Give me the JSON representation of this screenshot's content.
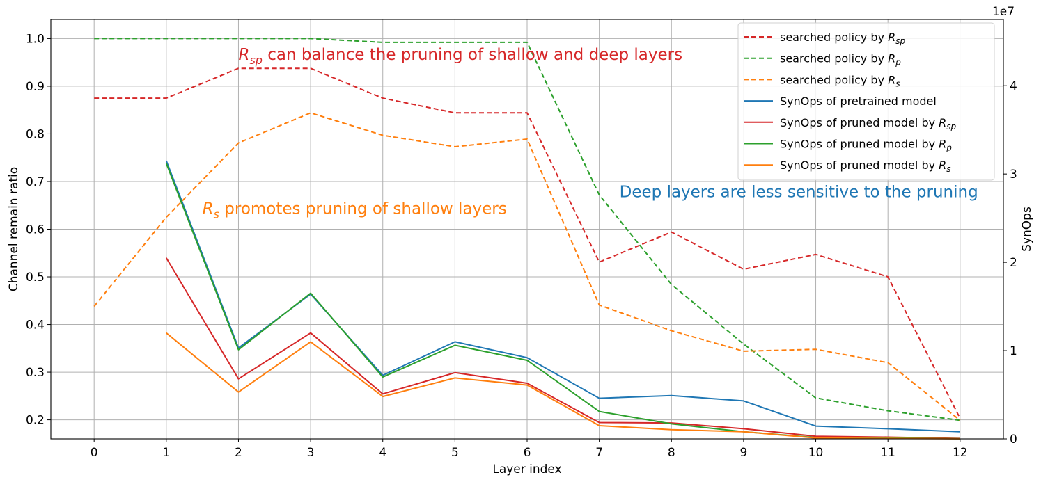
{
  "chart_data": {
    "type": "line",
    "xlabel": "Layer index",
    "ylabel_left": "Channel remain ratio",
    "ylabel_right": "SynOps",
    "right_axis_exponent": "1e7",
    "x": [
      0,
      1,
      2,
      3,
      4,
      5,
      6,
      7,
      8,
      9,
      10,
      11,
      12
    ],
    "xlim": [
      -0.6,
      12.6
    ],
    "ylim_left": [
      0.16,
      1.04
    ],
    "ylim_right": [
      0,
      47500000.0
    ],
    "left_ticks": [
      "0.2",
      "0.3",
      "0.4",
      "0.5",
      "0.6",
      "0.7",
      "0.8",
      "0.9",
      "1.0"
    ],
    "right_ticks": [
      "0",
      "1",
      "2",
      "3",
      "4"
    ],
    "grid": true,
    "legend_position": "top-right",
    "series": [
      {
        "name": "searched policy by R_sp",
        "axis": "left",
        "style": "dashed",
        "color": "#d62728",
        "x": [
          0,
          1,
          2,
          3,
          4,
          5,
          6,
          7,
          8,
          9,
          10,
          11,
          12
        ],
        "values": [
          0.875,
          0.875,
          0.9375,
          0.9375,
          0.875,
          0.844,
          0.844,
          0.531,
          0.594,
          0.516,
          0.547,
          0.5,
          0.203
        ]
      },
      {
        "name": "searched policy by R_p",
        "axis": "left",
        "style": "dashed",
        "color": "#2ca02c",
        "x": [
          0,
          1,
          2,
          3,
          4,
          5,
          6,
          7,
          8,
          9,
          10,
          11,
          12
        ],
        "values": [
          1.0,
          1.0,
          1.0,
          1.0,
          0.992,
          0.992,
          0.992,
          0.672,
          0.484,
          0.359,
          0.246,
          0.219,
          0.199
        ]
      },
      {
        "name": "searched policy by R_s",
        "axis": "left",
        "style": "dashed",
        "color": "#ff7f0e",
        "x": [
          0,
          1,
          2,
          3,
          4,
          5,
          6,
          7,
          8,
          9,
          10,
          11,
          12
        ],
        "values": [
          0.438,
          0.625,
          0.781,
          0.844,
          0.797,
          0.773,
          0.789,
          0.441,
          0.387,
          0.344,
          0.348,
          0.32,
          0.199
        ]
      },
      {
        "name": "SynOps of pretrained model",
        "axis": "right",
        "style": "solid",
        "color": "#1f77b4",
        "x": [
          1,
          2,
          3,
          4,
          5,
          6,
          7,
          8,
          9,
          10,
          11,
          12
        ],
        "values": [
          31500000.0,
          10300000.0,
          16400000.0,
          7200000.0,
          11000000.0,
          9200000.0,
          4600000.0,
          4900000.0,
          4300000.0,
          1450000.0,
          1150000.0,
          800000.0
        ]
      },
      {
        "name": "SynOps of pruned model by R_sp",
        "axis": "right",
        "style": "solid",
        "color": "#d62728",
        "x": [
          1,
          2,
          3,
          4,
          5,
          6,
          7,
          8,
          9,
          10,
          11,
          12
        ],
        "values": [
          20500000.0,
          6800000.0,
          12000000.0,
          5100000.0,
          7500000.0,
          6300000.0,
          1850000.0,
          1800000.0,
          1150000.0,
          300000.0,
          200000.0,
          50000.0
        ]
      },
      {
        "name": "SynOps of pruned model by R_p",
        "axis": "right",
        "style": "solid",
        "color": "#2ca02c",
        "x": [
          1,
          2,
          3,
          4,
          5,
          6,
          7,
          8,
          9,
          10,
          11,
          12
        ],
        "values": [
          31200000.0,
          10100000.0,
          16500000.0,
          7000000.0,
          10600000.0,
          8900000.0,
          3100000.0,
          1700000.0,
          800000.0,
          150000.0,
          100000.0,
          20000.0
        ]
      },
      {
        "name": "SynOps of pruned model by R_s",
        "axis": "right",
        "style": "solid",
        "color": "#ff7f0e",
        "x": [
          1,
          2,
          3,
          4,
          5,
          6,
          7,
          8,
          9,
          10,
          11,
          12
        ],
        "values": [
          12000000.0,
          5300000.0,
          11000000.0,
          4800000.0,
          6900000.0,
          6100000.0,
          1500000.0,
          1050000.0,
          800000.0,
          100000.0,
          50000.0,
          10000.0
        ]
      }
    ],
    "legend": [
      {
        "base": "searched policy by ",
        "sub": "sp",
        "color": "#d62728",
        "style": "dashed"
      },
      {
        "base": "searched policy by ",
        "sub": "p",
        "color": "#2ca02c",
        "style": "dashed"
      },
      {
        "base": "searched policy by ",
        "sub": "s",
        "color": "#ff7f0e",
        "style": "dashed"
      },
      {
        "base": "SynOps of pretrained model",
        "sub": "",
        "color": "#1f77b4",
        "style": "solid"
      },
      {
        "base": "SynOps of pruned model by ",
        "sub": "sp",
        "color": "#d62728",
        "style": "solid"
      },
      {
        "base": "SynOps of pruned model by ",
        "sub": "p",
        "color": "#2ca02c",
        "style": "solid"
      },
      {
        "base": "SynOps of pruned model by ",
        "sub": "s",
        "color": "#ff7f0e",
        "style": "solid"
      }
    ],
    "annotations": [
      {
        "sub": "sp",
        "text": " can balance the pruning of shallow and deep layers",
        "color": "#d62728",
        "x": 2,
        "y": 0.955
      },
      {
        "sub": "s",
        "text": " promotes pruning of shallow layers",
        "color": "#ff7f0e",
        "x": 1.5,
        "y": 0.632
      },
      {
        "sub": "",
        "text": "Deep layers are less sensitive to the pruning",
        "color": "#1f77b4",
        "x": 7.28,
        "y": 0.667
      }
    ]
  }
}
